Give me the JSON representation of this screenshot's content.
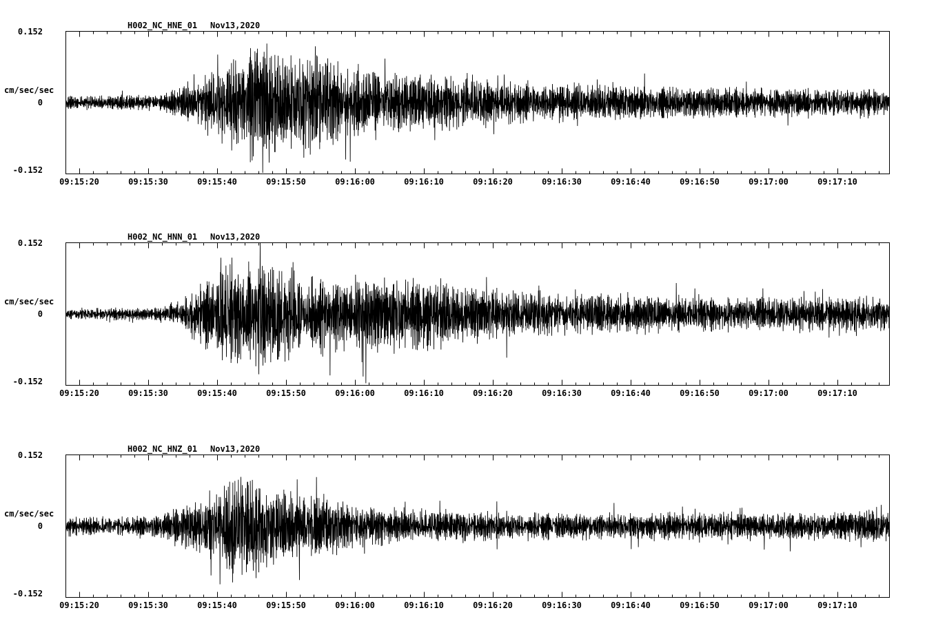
{
  "meta": {
    "background_color": "#ffffff",
    "trace_color": "#000000",
    "text_color": "#000000"
  },
  "chart_data": [
    {
      "type": "line",
      "title": "H002_NC_HNE_01",
      "date": "Nov13,2020",
      "ylabel": "cm/sec/sec",
      "ylim": [
        -0.152,
        0.152
      ],
      "ytick_labels": [
        "0.152",
        "0",
        "-0.152"
      ],
      "x_tick_labels": [
        "09:15:20",
        "09:15:30",
        "09:15:40",
        "09:15:50",
        "09:16:00",
        "09:16:10",
        "09:16:20",
        "09:16:30",
        "09:16:40",
        "09:16:50",
        "09:17:00",
        "09:17:10"
      ],
      "x_tick_offsets_s": [
        2,
        12,
        22,
        32,
        42,
        52,
        62,
        72,
        82,
        92,
        102,
        112
      ],
      "x_minor_tick_interval_s": 2,
      "duration_s": 119.5,
      "seed": 101,
      "envelope_t_s": [
        0,
        14,
        17,
        20,
        23,
        26,
        28,
        31,
        34,
        36,
        39,
        42,
        47,
        52,
        58,
        64,
        72,
        82,
        92,
        104,
        119.5
      ],
      "envelope_amp": [
        0.012,
        0.013,
        0.028,
        0.045,
        0.065,
        0.09,
        0.105,
        0.085,
        0.08,
        0.095,
        0.065,
        0.055,
        0.05,
        0.045,
        0.04,
        0.035,
        0.032,
        0.028,
        0.026,
        0.025,
        0.022
      ],
      "spikes": [
        {
          "t": 27.8,
          "a": 0.115
        },
        {
          "t": 29.5,
          "a": -0.128
        },
        {
          "t": 30.8,
          "a": 0.1
        },
        {
          "t": 36.2,
          "a": 0.12
        }
      ],
      "description": "Horizontal E component accelerogram; quiet background, strong burst ~09:15:40-09:15:55 peaking near 0.11 cm/sec/sec, slowly decaying coda"
    },
    {
      "type": "line",
      "title": "H002_NC_HNN_01",
      "date": "Nov13,2020",
      "ylabel": "cm/sec/sec",
      "ylim": [
        -0.152,
        0.152
      ],
      "ytick_labels": [
        "0.152",
        "0",
        "-0.152"
      ],
      "x_tick_labels": [
        "09:15:20",
        "09:15:30",
        "09:15:40",
        "09:15:50",
        "09:16:00",
        "09:16:10",
        "09:16:20",
        "09:16:30",
        "09:16:40",
        "09:16:50",
        "09:17:00",
        "09:17:10"
      ],
      "x_tick_offsets_s": [
        2,
        12,
        22,
        32,
        42,
        52,
        62,
        72,
        82,
        92,
        102,
        112
      ],
      "x_minor_tick_interval_s": 2,
      "duration_s": 119.5,
      "seed": 202,
      "envelope_t_s": [
        0,
        14,
        17,
        20,
        22,
        24,
        26,
        28,
        30,
        33,
        36,
        40,
        44,
        48,
        52,
        56,
        62,
        70,
        80,
        92,
        104,
        119.5
      ],
      "envelope_amp": [
        0.01,
        0.011,
        0.025,
        0.05,
        0.07,
        0.09,
        0.08,
        0.1,
        0.085,
        0.08,
        0.075,
        0.06,
        0.065,
        0.055,
        0.06,
        0.05,
        0.04,
        0.036,
        0.032,
        0.03,
        0.028,
        0.03
      ],
      "spikes": [
        {
          "t": 22.5,
          "a": 0.12
        },
        {
          "t": 24.9,
          "a": -0.105
        },
        {
          "t": 28.2,
          "a": 0.152
        },
        {
          "t": 28.6,
          "a": -0.11
        }
      ],
      "description": "Horizontal N component accelerogram; burst beginning ~09:15:36 with full-scale spike ~09:15:46 reaching 0.152 cm/sec/sec, long decaying coda"
    },
    {
      "type": "line",
      "title": "H002_NC_HNZ_01",
      "date": "Nov13,2020",
      "ylabel": "cm/sec/sec",
      "ylim": [
        -0.152,
        0.152
      ],
      "ytick_labels": [
        "0.152",
        "0",
        "-0.152"
      ],
      "x_tick_labels": [
        "09:15:20",
        "09:15:30",
        "09:15:40",
        "09:15:50",
        "09:16:00",
        "09:16:10",
        "09:16:20",
        "09:16:30",
        "09:16:40",
        "09:16:50",
        "09:17:00",
        "09:17:10"
      ],
      "x_tick_offsets_s": [
        2,
        12,
        22,
        32,
        42,
        52,
        62,
        72,
        82,
        92,
        102,
        112
      ],
      "x_minor_tick_interval_s": 2,
      "duration_s": 119.5,
      "seed": 303,
      "envelope_t_s": [
        0,
        12,
        16,
        20,
        23,
        25,
        27,
        30,
        33,
        36,
        39,
        42,
        48,
        54,
        62,
        72,
        82,
        92,
        102,
        112,
        119.5
      ],
      "envelope_amp": [
        0.015,
        0.016,
        0.03,
        0.05,
        0.075,
        0.09,
        0.085,
        0.07,
        0.06,
        0.055,
        0.045,
        0.035,
        0.028,
        0.025,
        0.024,
        0.022,
        0.022,
        0.024,
        0.022,
        0.024,
        0.028
      ],
      "spikes": [
        {
          "t": 25.4,
          "a": 0.105
        },
        {
          "t": 27.2,
          "a": -0.095
        },
        {
          "t": 33.9,
          "a": -0.115
        }
      ],
      "description": "Vertical Z component accelerogram; burst ~09:15:38-09:15:52 peaking near 0.09 cm/sec/sec with prominent downward spike ~09:15:52, low-level coda"
    }
  ]
}
